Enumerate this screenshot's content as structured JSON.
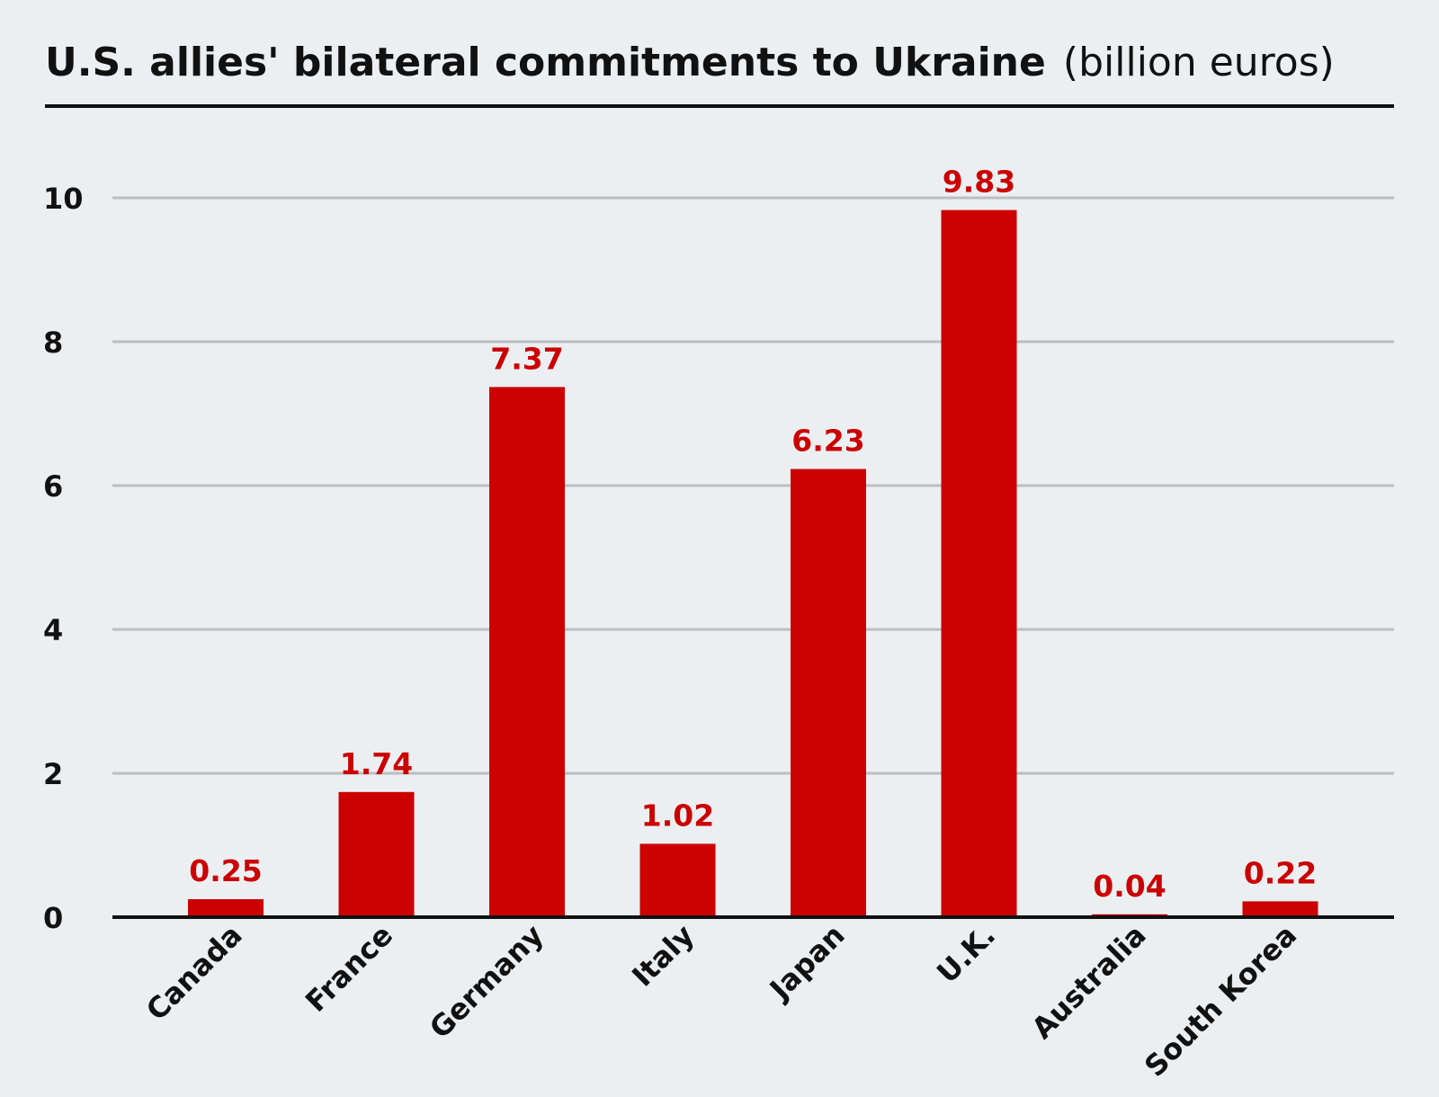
{
  "chart_data": {
    "type": "bar",
    "title": "U.S. allies' bilateral commitments to Ukraine",
    "subtitle": "(billion euros)",
    "categories": [
      "Canada",
      "France",
      "Germany",
      "Italy",
      "Japan",
      "U.K.",
      "Australia",
      "South Korea"
    ],
    "values": [
      0.25,
      1.74,
      7.37,
      1.02,
      6.23,
      9.83,
      0.04,
      0.22
    ],
    "value_labels": [
      "0.25",
      "1.74",
      "7.37",
      "1.02",
      "6.23",
      "9.83",
      "0.04",
      "0.22"
    ],
    "xlabel": "",
    "ylabel": "",
    "ylim": [
      0,
      10
    ],
    "yticks": [
      0,
      2,
      4,
      6,
      8,
      10
    ],
    "grid": true,
    "legend": "none",
    "bar_color": "#cc0000",
    "label_color": "#cc0000"
  }
}
